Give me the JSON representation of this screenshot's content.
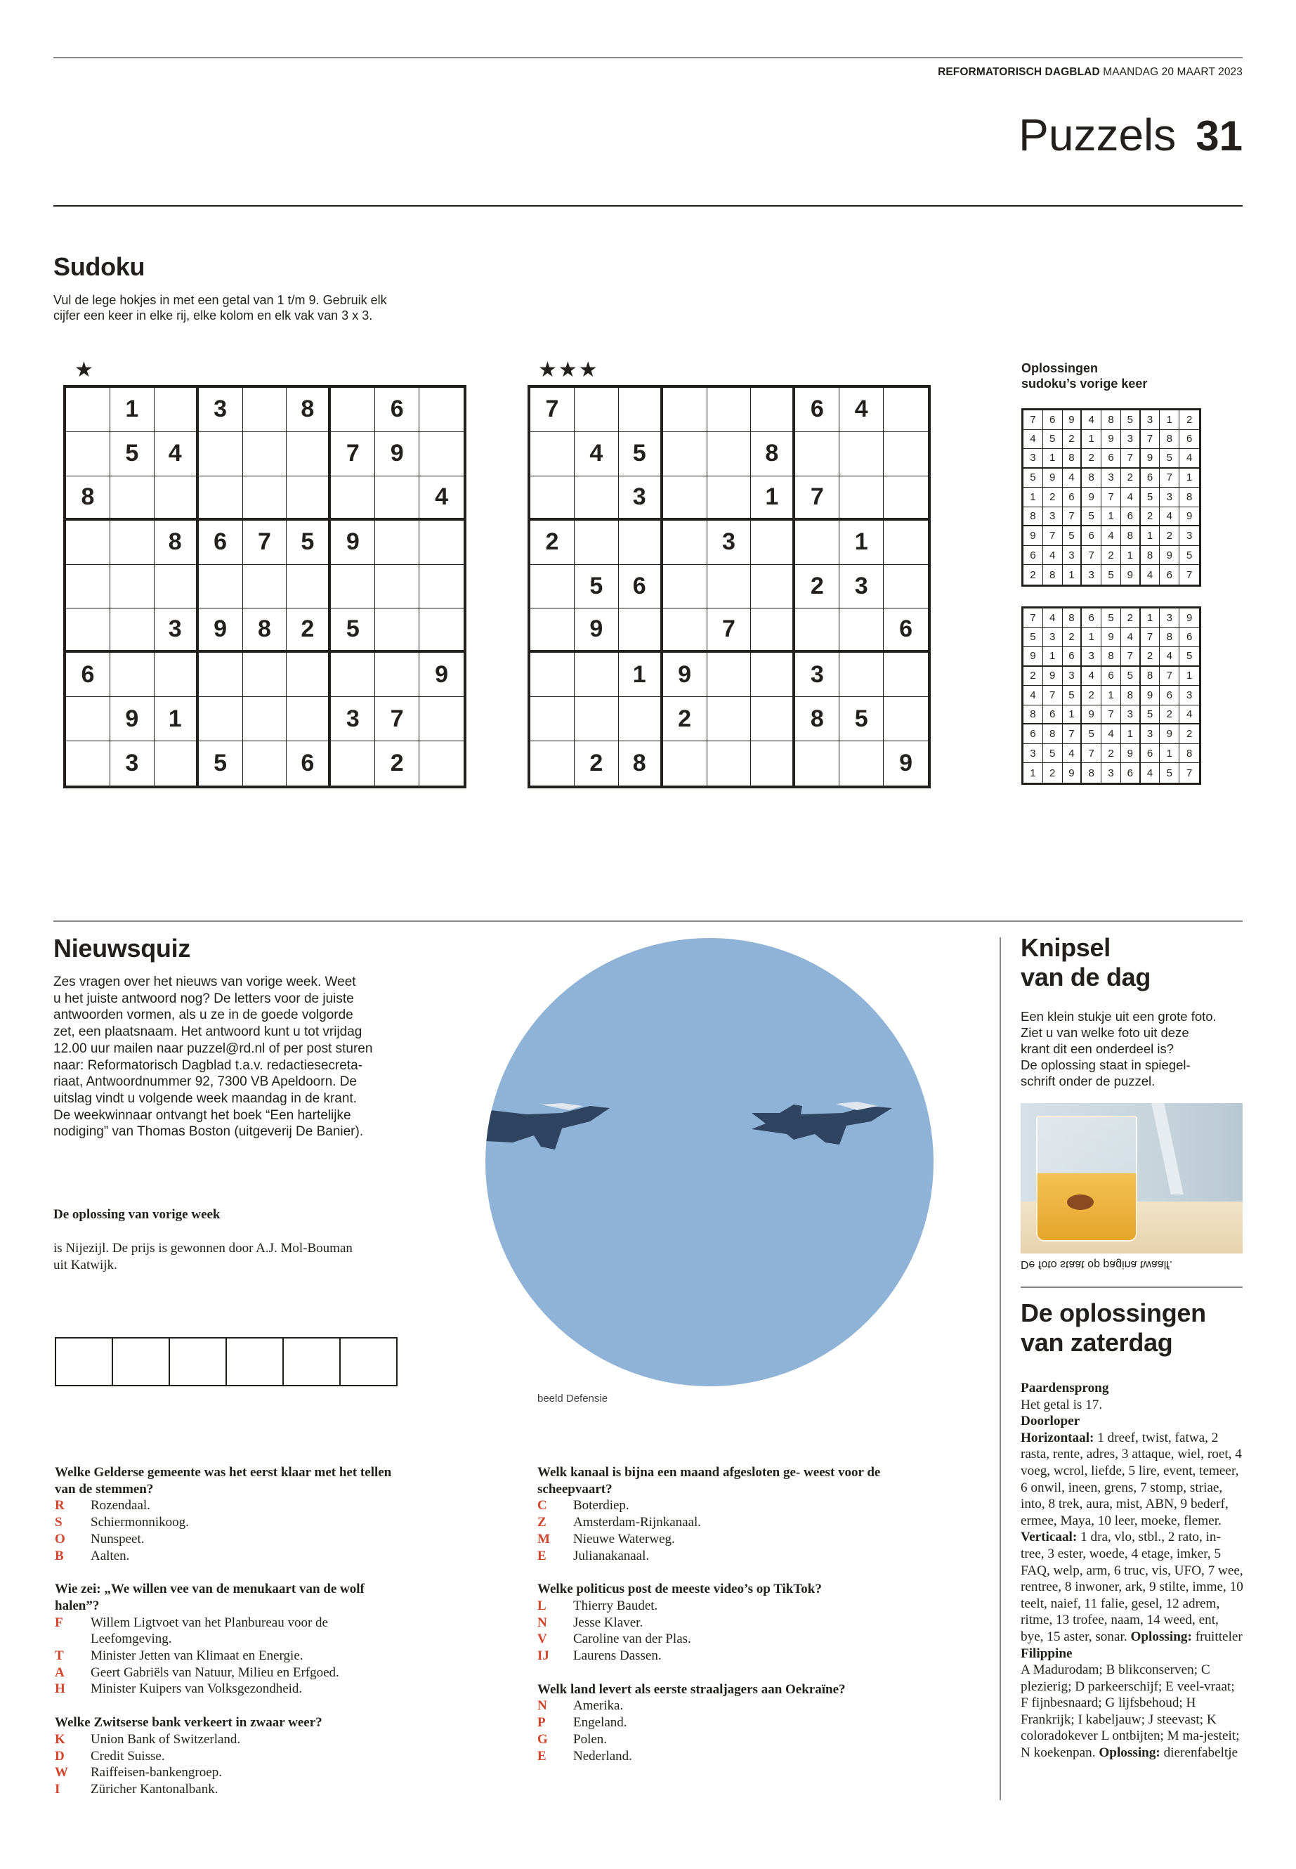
{
  "header": {
    "publication": "REFORMATORISCH DAGBLAD",
    "date": "MAANDAG 20 MAART 2023",
    "section": "Puzzels",
    "page_number": "31"
  },
  "sudoku": {
    "title": "Sudoku",
    "intro_lines": [
      "Vul de lege hokjes in met een getal van 1 t/m 9. Gebruik elk",
      "cijfer een keer in elke rij, elke kolom en elk vak van 3 x 3."
    ],
    "puzzles": [
      {
        "difficulty": "★",
        "grid": [
          [
            "",
            "1",
            "",
            "3",
            "",
            "8",
            "",
            "6",
            ""
          ],
          [
            "",
            "5",
            "4",
            "",
            "",
            "",
            "7",
            "9",
            ""
          ],
          [
            "8",
            "",
            "",
            "",
            "",
            "",
            "",
            "",
            "4"
          ],
          [
            "",
            "",
            "8",
            "6",
            "7",
            "5",
            "9",
            "",
            ""
          ],
          [
            "",
            "",
            "",
            "",
            "",
            "",
            "",
            "",
            ""
          ],
          [
            "",
            "",
            "3",
            "9",
            "8",
            "2",
            "5",
            "",
            ""
          ],
          [
            "6",
            "",
            "",
            "",
            "",
            "",
            "",
            "",
            "9"
          ],
          [
            "",
            "9",
            "1",
            "",
            "",
            "",
            "3",
            "7",
            ""
          ],
          [
            "",
            "3",
            "",
            "5",
            "",
            "6",
            "",
            "2",
            ""
          ]
        ]
      },
      {
        "difficulty": "★★★",
        "grid": [
          [
            "7",
            "",
            "",
            "",
            "",
            "",
            "6",
            "4",
            ""
          ],
          [
            "",
            "4",
            "5",
            "",
            "",
            "8",
            "",
            "",
            ""
          ],
          [
            "",
            "",
            "3",
            "",
            "",
            "1",
            "7",
            "",
            ""
          ],
          [
            "2",
            "",
            "",
            "",
            "3",
            "",
            "",
            "1",
            ""
          ],
          [
            "",
            "5",
            "6",
            "",
            "",
            "",
            "2",
            "3",
            ""
          ],
          [
            "",
            "9",
            "",
            "",
            "7",
            "",
            "",
            "",
            "6"
          ],
          [
            "",
            "",
            "1",
            "9",
            "",
            "",
            "3",
            "",
            ""
          ],
          [
            "",
            "",
            "",
            "2",
            "",
            "",
            "8",
            "5",
            ""
          ],
          [
            "",
            "2",
            "8",
            "",
            "",
            "",
            "",
            "",
            "9"
          ]
        ]
      }
    ],
    "solutions_title_lines": [
      "Oplossingen",
      "sudoku’s vorige keer"
    ],
    "solutions": [
      [
        [
          "7",
          "6",
          "9",
          "4",
          "8",
          "5",
          "3",
          "1",
          "2"
        ],
        [
          "4",
          "5",
          "2",
          "1",
          "9",
          "3",
          "7",
          "8",
          "6"
        ],
        [
          "3",
          "1",
          "8",
          "2",
          "6",
          "7",
          "9",
          "5",
          "4"
        ],
        [
          "5",
          "9",
          "4",
          "8",
          "3",
          "2",
          "6",
          "7",
          "1"
        ],
        [
          "1",
          "2",
          "6",
          "9",
          "7",
          "4",
          "5",
          "3",
          "8"
        ],
        [
          "8",
          "3",
          "7",
          "5",
          "1",
          "6",
          "2",
          "4",
          "9"
        ],
        [
          "9",
          "7",
          "5",
          "6",
          "4",
          "8",
          "1",
          "2",
          "3"
        ],
        [
          "6",
          "4",
          "3",
          "7",
          "2",
          "1",
          "8",
          "9",
          "5"
        ],
        [
          "2",
          "8",
          "1",
          "3",
          "5",
          "9",
          "4",
          "6",
          "7"
        ]
      ],
      [
        [
          "7",
          "4",
          "8",
          "6",
          "5",
          "2",
          "1",
          "3",
          "9"
        ],
        [
          "5",
          "3",
          "2",
          "1",
          "9",
          "4",
          "7",
          "8",
          "6"
        ],
        [
          "9",
          "1",
          "6",
          "3",
          "8",
          "7",
          "2",
          "4",
          "5"
        ],
        [
          "2",
          "9",
          "3",
          "4",
          "6",
          "5",
          "8",
          "7",
          "1"
        ],
        [
          "4",
          "7",
          "5",
          "2",
          "1",
          "8",
          "9",
          "6",
          "3"
        ],
        [
          "8",
          "6",
          "1",
          "9",
          "7",
          "3",
          "5",
          "2",
          "4"
        ],
        [
          "6",
          "8",
          "7",
          "5",
          "4",
          "1",
          "3",
          "9",
          "2"
        ],
        [
          "3",
          "5",
          "4",
          "7",
          "2",
          "9",
          "6",
          "1",
          "8"
        ],
        [
          "1",
          "2",
          "9",
          "8",
          "3",
          "6",
          "4",
          "5",
          "7"
        ]
      ]
    ]
  },
  "nieuwsquiz": {
    "title": "Nieuwsquiz",
    "intro_lines": [
      "Zes vragen over het nieuws van vorige week. Weet",
      "u het juiste antwoord nog? De letters voor de juiste",
      "antwoorden vormen, als u ze in de goede volgorde",
      "zet, een plaatsnaam. Het antwoord kunt u tot vrijdag",
      "12.00 uur mailen naar puzzel@rd.nl of per post sturen",
      "naar: Reformatorisch Dagblad t.a.v. redactiesecreta-",
      "riaat, Antwoordnummer 92, 7300 VB Apeldoorn. De",
      "uitslag vindt u volgende week maandag in de krant.",
      "De weekwinnaar ontvangt het boek “Een hartelijke",
      "nodiging” van Thomas Boston (uitgeverij De Banier)."
    ],
    "previous_title": "De oplossing van vorige week",
    "previous_lines": [
      "is Nijezijl. De prijs is gewonnen door A.J. Mol-Bouman",
      "uit Katwijk."
    ],
    "answer_box_count": 6,
    "photo_credit": "beeld Defensie",
    "accent_color": "#d4432a",
    "columns": [
      [
        {
          "question": "Welke Gelderse gemeente was het eerst klaar met het tellen van de stemmen?",
          "options": [
            {
              "letter": "R",
              "text": "Rozendaal."
            },
            {
              "letter": "S",
              "text": "Schiermonnikoog."
            },
            {
              "letter": "O",
              "text": "Nunspeet."
            },
            {
              "letter": "B",
              "text": "Aalten."
            }
          ]
        },
        {
          "question": "Wie zei: „We willen vee van de menukaart van de wolf halen”?",
          "options": [
            {
              "letter": "F",
              "text": "Willem Ligtvoet van het Planbureau voor de Leefomgeving."
            },
            {
              "letter": "T",
              "text": "Minister Jetten van Klimaat en Energie."
            },
            {
              "letter": "A",
              "text": "Geert Gabriëls van Natuur, Milieu en Erfgoed."
            },
            {
              "letter": "H",
              "text": "Minister Kuipers van Volksgezondheid."
            }
          ]
        },
        {
          "question": "Welke Zwitserse bank verkeert in zwaar weer?",
          "options": [
            {
              "letter": "K",
              "text": "Union Bank of Switzerland."
            },
            {
              "letter": "D",
              "text": "Credit Suisse."
            },
            {
              "letter": "W",
              "text": "Raiffeisen-bankengroep."
            },
            {
              "letter": "I",
              "text": "Züricher Kantonalbank."
            }
          ]
        }
      ],
      [
        {
          "question": "Welk kanaal is bijna een maand afgesloten ge- weest voor de scheepvaart?",
          "options": [
            {
              "letter": "C",
              "text": "Boterdiep."
            },
            {
              "letter": "Z",
              "text": "Amsterdam-Rijnkanaal."
            },
            {
              "letter": "M",
              "text": "Nieuwe Waterweg."
            },
            {
              "letter": "E",
              "text": "Julianakanaal."
            }
          ]
        },
        {
          "question": "Welke politicus post de meeste video’s op TikTok?",
          "options": [
            {
              "letter": "L",
              "text": "Thierry Baudet."
            },
            {
              "letter": "N",
              "text": "Jesse Klaver."
            },
            {
              "letter": "V",
              "text": "Caroline van der Plas."
            },
            {
              "letter": "IJ",
              "text": "Laurens Dassen."
            }
          ]
        },
        {
          "question": "Welk land levert als eerste straaljagers aan Oekraïne?",
          "options": [
            {
              "letter": "N",
              "text": "Amerika."
            },
            {
              "letter": "P",
              "text": "Engeland."
            },
            {
              "letter": "G",
              "text": "Polen."
            },
            {
              "letter": "E",
              "text": "Nederland."
            }
          ]
        }
      ]
    ]
  },
  "knipsel": {
    "title_lines": [
      "Knipsel",
      "van de dag"
    ],
    "intro_lines": [
      "Een klein stukje uit een grote foto.",
      "Ziet u van welke foto uit deze",
      "krant dit een onderdeel is?",
      "De oplossing staat in spiegel-",
      "schrift onder de puzzel."
    ],
    "mirrored_answer": "De foto staat op pagina twaalf."
  },
  "oplossingen": {
    "title_lines": [
      "De oplossingen",
      "van zaterdag"
    ],
    "blocks": [
      {
        "title": "Paardensprong",
        "parts": [
          {
            "bold": false,
            "text": "Het getal is 17."
          }
        ]
      },
      {
        "title": "Doorloper",
        "parts": [
          {
            "bold": true,
            "text": "Horizontaal: "
          },
          {
            "bold": false,
            "text": "1 dreef, twist, fatwa, 2 rasta, rente, adres, 3 attaque, wiel, roet, 4 voeg, wcrol, liefde, 5 lire, event, temeer, 6 onwil, ineen, grens, 7 stomp, striae, into, 8 trek, aura, mist, ABN, 9 bederf, ermee, Maya, 10 leer, moeke, flemer. "
          },
          {
            "bold": true,
            "text": "Verticaal: "
          },
          {
            "bold": false,
            "text": "1 dra, vlo, stbl., 2 rato, in-tree, 3 ester, woede, 4 etage, imker, 5 FAQ, welp, arm, 6 truc, vis, UFO, 7 wee, rentree, 8 inwoner, ark, 9 stilte, imme, 10 teelt, naief, 11 falie, gesel, 12 adrem, ritme, 13 trofee, naam, 14 weed, ent, bye, 15 aster, sonar. "
          },
          {
            "bold": true,
            "text": "Oplossing: "
          },
          {
            "bold": false,
            "text": "fruitteler"
          }
        ]
      },
      {
        "title": "Filippine",
        "parts": [
          {
            "bold": false,
            "text": "A Madurodam; B blikconserven; C plezierig; D parkeerschijf; E veel-vraat; F fijnbesnaard; G lijfsbehoud; H Frankrijk; I kabeljauw; J steevast; K coloradokever L ontbijten; M ma-jesteit; N koekenpan. "
          },
          {
            "bold": true,
            "text": "Oplossing: "
          },
          {
            "bold": false,
            "text": "dierenfabeltje"
          }
        ]
      }
    ]
  }
}
